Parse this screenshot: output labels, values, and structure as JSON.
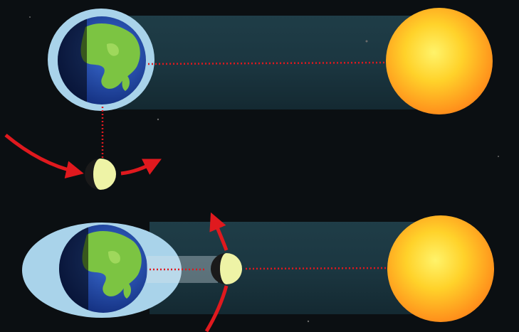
{
  "diagram": {
    "panels": [
      {
        "id": "top",
        "arrangement": "moon-perpendicular"
      },
      {
        "id": "bottom",
        "arrangement": "moon-aligned"
      }
    ],
    "elements": [
      "earth",
      "moon",
      "sun",
      "orbit-arrow",
      "sight-line",
      "tidal-bulge",
      "shadow-beam"
    ]
  },
  "colors": {
    "background": "#0b0f12",
    "beam": "#1d3b46",
    "halo": "#a9d3ea",
    "ocean": "#1c3fa0",
    "land": "#7cc442",
    "sun_core": "#ffe23a",
    "sun_edge": "#ff8a1a",
    "moon_lit": "#eef3a6",
    "moon_dark": "#1a1a1a",
    "arrow": "#e0191e",
    "dotted_line": "#e0191e"
  }
}
